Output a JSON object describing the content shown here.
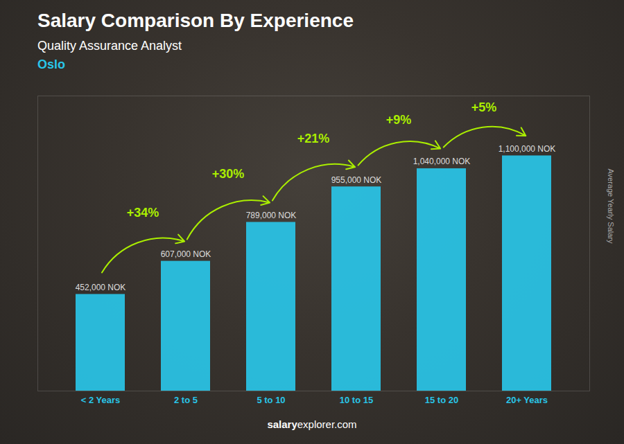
{
  "chart_data": {
    "type": "bar",
    "title": "Salary Comparison By Experience",
    "subtitle": "Quality Assurance Analyst",
    "city": "Oslo",
    "categories": [
      "< 2 Years",
      "2 to 5",
      "5 to 10",
      "10 to 15",
      "15 to 20",
      "20+ Years"
    ],
    "values": [
      452000,
      607000,
      789000,
      955000,
      1040000,
      1100000
    ],
    "value_labels": [
      "452,000 NOK",
      "607,000 NOK",
      "789,000 NOK",
      "955,000 NOK",
      "1,040,000 NOK",
      "1,100,000 NOK"
    ],
    "data_labels": true,
    "color": "#29C6E8",
    "ylabel": "Average Yearly Salary",
    "ylim": [
      0,
      1380000
    ],
    "tick_labels": "x",
    "grid": false,
    "annotations": [
      {
        "text": "+34%",
        "from": "< 2 Years",
        "to": "2 to 5",
        "color": "#AAEE00"
      },
      {
        "text": "+30%",
        "from": "2 to 5",
        "to": "5 to 10",
        "color": "#AAEE00"
      },
      {
        "text": "+21%",
        "from": "5 to 10",
        "to": "10 to 15",
        "color": "#AAEE00"
      },
      {
        "text": "+9%",
        "from": "10 to 15",
        "to": "15 to 20",
        "color": "#AAEE00"
      },
      {
        "text": "+5%",
        "from": "15 to 20",
        "to": "20+ Years",
        "color": "#AAEE00"
      }
    ],
    "footer": [
      "salary",
      "explorer.com"
    ]
  }
}
